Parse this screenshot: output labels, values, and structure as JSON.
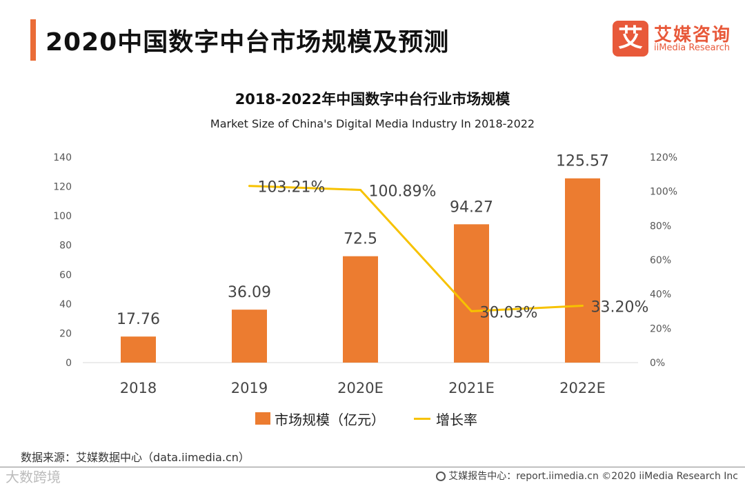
{
  "header": {
    "title": "2020中国数字中台市场规模及预测"
  },
  "logo": {
    "mark": "艾",
    "name_cn": "艾媒咨询",
    "name_en": "iiMedia Research"
  },
  "chart_data": {
    "type": "bar",
    "title": "2018-2022年中国数字中台行业市场规模",
    "subtitle": "Market Size of China's Digital Media Industry In 2018-2022",
    "categories": [
      "2018",
      "2019",
      "2020E",
      "2021E",
      "2022E"
    ],
    "series": [
      {
        "name": "市场规模（亿元）",
        "type": "bar",
        "axis": "left",
        "color": "#ec7c30",
        "values": [
          17.76,
          36.09,
          72.5,
          94.27,
          125.57
        ],
        "labels": [
          "17.76",
          "36.09",
          "72.5",
          "94.27",
          "125.57"
        ]
      },
      {
        "name": "增长率",
        "type": "line",
        "axis": "right",
        "color": "#f7c200",
        "values": [
          null,
          103.21,
          100.89,
          30.03,
          33.2
        ],
        "labels": [
          "",
          "103.21%",
          "100.89%",
          "30.03%",
          "33.20%"
        ]
      }
    ],
    "y_left": {
      "ylim": [
        0,
        140
      ],
      "ticks": [
        "0",
        "20",
        "40",
        "60",
        "80",
        "100",
        "120",
        "140"
      ]
    },
    "y_right": {
      "ylim": [
        0,
        120
      ],
      "ticks": [
        "0%",
        "20%",
        "40%",
        "60%",
        "80%",
        "100%",
        "120%"
      ]
    },
    "grid": false,
    "legend": "bottom-center"
  },
  "legend": {
    "bar_label": "市场规模（亿元）",
    "line_label": "增长率"
  },
  "source": "数据来源：艾媒数据中心（data.iimedia.cn）",
  "watermark": "大数跨境",
  "footer": "艾媒报告中心：report.iimedia.cn   ©2020  iiMedia Research  Inc"
}
